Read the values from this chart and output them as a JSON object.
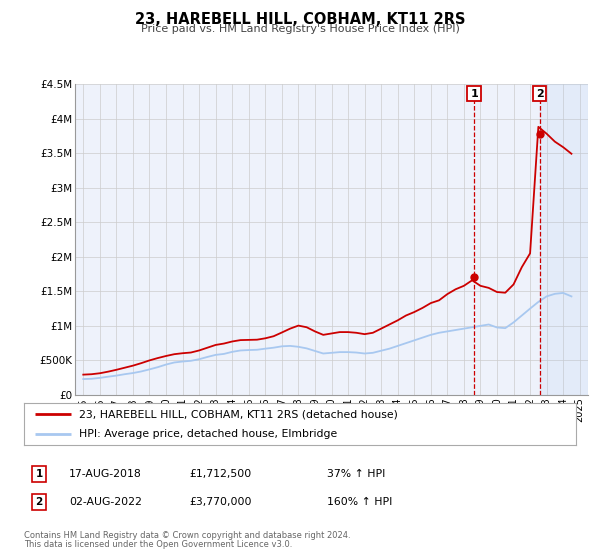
{
  "title": "23, HAREBELL HILL, COBHAM, KT11 2RS",
  "subtitle": "Price paid vs. HM Land Registry's House Price Index (HPI)",
  "ylim": [
    0,
    4500000
  ],
  "yticks": [
    0,
    500000,
    1000000,
    1500000,
    2000000,
    2500000,
    3000000,
    3500000,
    4000000,
    4500000
  ],
  "ytick_labels": [
    "£0",
    "£500K",
    "£1M",
    "£1.5M",
    "£2M",
    "£2.5M",
    "£3M",
    "£3.5M",
    "£4M",
    "£4.5M"
  ],
  "plot_bg_color": "#eef2fb",
  "grid_color": "#cccccc",
  "hpi_color": "#a8c8f0",
  "price_color": "#cc0000",
  "marker1_date_x": 2018.62,
  "marker2_date_x": 2022.58,
  "marker1_y": 1712500,
  "marker2_y": 3770000,
  "legend_label_red": "23, HAREBELL HILL, COBHAM, KT11 2RS (detached house)",
  "legend_label_blue": "HPI: Average price, detached house, Elmbridge",
  "table_row1": [
    "1",
    "17-AUG-2018",
    "£1,712,500",
    "37% ↑ HPI"
  ],
  "table_row2": [
    "2",
    "02-AUG-2022",
    "£3,770,000",
    "160% ↑ HPI"
  ],
  "footnote1": "Contains HM Land Registry data © Crown copyright and database right 2024.",
  "footnote2": "This data is licensed under the Open Government Licence v3.0.",
  "xlim_min": 1994.5,
  "xlim_max": 2025.5,
  "hpi_x": [
    1995.0,
    1995.5,
    1996.0,
    1996.5,
    1997.0,
    1997.5,
    1998.0,
    1998.5,
    1999.0,
    1999.5,
    2000.0,
    2000.5,
    2001.0,
    2001.5,
    2002.0,
    2002.5,
    2003.0,
    2003.5,
    2004.0,
    2004.5,
    2005.0,
    2005.5,
    2006.0,
    2006.5,
    2007.0,
    2007.5,
    2008.0,
    2008.5,
    2009.0,
    2009.5,
    2010.0,
    2010.5,
    2011.0,
    2011.5,
    2012.0,
    2012.5,
    2013.0,
    2013.5,
    2014.0,
    2014.5,
    2015.0,
    2015.5,
    2016.0,
    2016.5,
    2017.0,
    2017.5,
    2018.0,
    2018.5,
    2019.0,
    2019.5,
    2020.0,
    2020.5,
    2021.0,
    2021.5,
    2022.0,
    2022.5,
    2023.0,
    2023.5,
    2024.0,
    2024.5
  ],
  "hpi_y": [
    228000,
    232000,
    245000,
    262000,
    278000,
    298000,
    315000,
    338000,
    368000,
    400000,
    438000,
    468000,
    482000,
    492000,
    515000,
    548000,
    578000,
    592000,
    622000,
    642000,
    648000,
    652000,
    668000,
    682000,
    702000,
    708000,
    695000,
    672000,
    635000,
    598000,
    608000,
    618000,
    618000,
    612000,
    598000,
    608000,
    638000,
    668000,
    708000,
    748000,
    788000,
    828000,
    868000,
    898000,
    918000,
    938000,
    958000,
    978000,
    998000,
    1018000,
    975000,
    965000,
    1048000,
    1148000,
    1248000,
    1345000,
    1425000,
    1462000,
    1475000,
    1425000
  ],
  "price_x": [
    1995.0,
    1995.5,
    1996.0,
    1996.5,
    1997.0,
    1997.5,
    1998.0,
    1998.5,
    1999.0,
    1999.5,
    2000.0,
    2000.5,
    2001.0,
    2001.5,
    2002.0,
    2002.5,
    2003.0,
    2003.5,
    2004.0,
    2004.5,
    2005.0,
    2005.5,
    2006.0,
    2006.5,
    2007.0,
    2007.5,
    2008.0,
    2008.5,
    2009.0,
    2009.5,
    2010.0,
    2010.5,
    2011.0,
    2011.5,
    2012.0,
    2012.5,
    2013.0,
    2013.5,
    2014.0,
    2014.5,
    2015.0,
    2015.5,
    2016.0,
    2016.5,
    2017.0,
    2017.5,
    2018.0,
    2018.5,
    2019.0,
    2019.5,
    2020.0,
    2020.5,
    2021.0,
    2021.5,
    2022.0,
    2022.5,
    2023.0,
    2023.5,
    2024.0,
    2024.5
  ],
  "price_y": [
    292000,
    298000,
    312000,
    335000,
    362000,
    392000,
    422000,
    458000,
    498000,
    532000,
    562000,
    588000,
    602000,
    612000,
    642000,
    682000,
    722000,
    742000,
    772000,
    792000,
    795000,
    798000,
    818000,
    848000,
    902000,
    958000,
    1002000,
    978000,
    918000,
    868000,
    888000,
    908000,
    908000,
    898000,
    878000,
    898000,
    958000,
    1018000,
    1078000,
    1148000,
    1198000,
    1258000,
    1328000,
    1368000,
    1458000,
    1528000,
    1578000,
    1658000,
    1578000,
    1548000,
    1488000,
    1478000,
    1598000,
    1848000,
    2048000,
    3880000,
    3780000,
    3665000,
    3585000,
    3490000
  ]
}
